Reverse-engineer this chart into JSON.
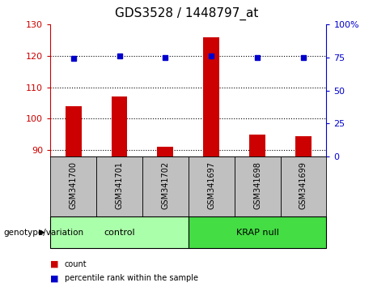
{
  "title": "GDS3528 / 1448797_at",
  "samples": [
    "GSM341700",
    "GSM341701",
    "GSM341702",
    "GSM341697",
    "GSM341698",
    "GSM341699"
  ],
  "bar_values": [
    104,
    107,
    91,
    126,
    95,
    94.5
  ],
  "dot_values": [
    74,
    76,
    75,
    76,
    75,
    75
  ],
  "ylim_left": [
    88,
    130
  ],
  "ylim_right": [
    0,
    100
  ],
  "yticks_left": [
    90,
    100,
    110,
    120,
    130
  ],
  "yticks_right": [
    0,
    25,
    50,
    75,
    100
  ],
  "ytick_labels_right": [
    "0",
    "25",
    "50",
    "75",
    "100%"
  ],
  "grid_lines": [
    90,
    100,
    110,
    120
  ],
  "bar_color": "#CC0000",
  "dot_color": "#0000CC",
  "bar_width": 0.35,
  "plot_bg": "#ffffff",
  "sample_box_color": "#C0C0C0",
  "group_spans": [
    {
      "label": "control",
      "start": 0,
      "end": 2,
      "color": "#AAFFAA"
    },
    {
      "label": "KRAP null",
      "start": 3,
      "end": 5,
      "color": "#44DD44"
    }
  ],
  "legend_count_label": "count",
  "legend_pct_label": "percentile rank within the sample",
  "genotype_label": "genotype/variation",
  "title_fontsize": 11,
  "tick_fontsize": 8,
  "sample_fontsize": 7,
  "group_fontsize": 8,
  "legend_fontsize": 7
}
